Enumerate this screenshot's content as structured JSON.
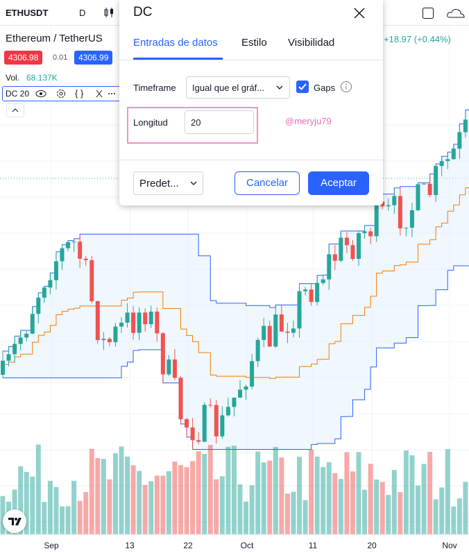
{
  "header": {
    "symbol": "ETHUSDT",
    "interval": "D",
    "name": "Ethereum / TetherUS",
    "change": "+18.97 (+0.44%)",
    "bid": "4306.98",
    "spread": "0.01",
    "ask": "4306.99",
    "volume_label": "Vol.",
    "volume_value": "68.137K",
    "indicator": "DC 20"
  },
  "dialog": {
    "title": "DC",
    "tabs": [
      "Entradas de datos",
      "Estilo",
      "Visibilidad"
    ],
    "timeframe_label": "Timeframe",
    "timeframe_value": "Igual que el gráf...",
    "gaps_label": "Gaps",
    "length_label": "Longitud",
    "length_value": "20",
    "watermark": "@meryju79",
    "preset": "Predet...",
    "cancel": "Cancelar",
    "accept": "Aceptar"
  },
  "x_axis": {
    "labels": [
      "Sep",
      "13",
      "22",
      "Oct",
      "11",
      "20",
      "Nov"
    ]
  }
}
